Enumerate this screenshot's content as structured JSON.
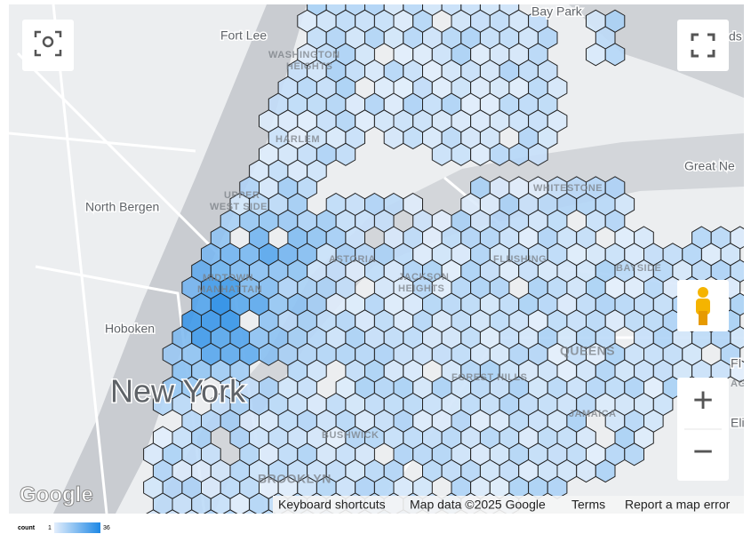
{
  "map": {
    "labels": [
      "Bay Park",
      "Fort Lee",
      "WASHINGTON",
      "HEIGHTS",
      "HARLEM",
      "UPPER",
      "WEST SIDE",
      "North Bergen",
      "Hoboken",
      "New York",
      "MIDTOWN",
      "MANHATTAN",
      "ASTORIA",
      "JACKSON",
      "HEIGHTS",
      "FLUSHING",
      "WHITESTONE",
      "BAYSIDE",
      "QUEENS",
      "FOREST HILLS",
      "JAMAICA",
      "BUSHWICK",
      "BROOKLYN",
      "Great Ne",
      "ds",
      "FI",
      "AG",
      "Eli"
    ],
    "attribution": {
      "logo": "Google",
      "shortcuts": "Keyboard shortcuts",
      "data": "Map data ©2025 Google",
      "terms": "Terms",
      "report": "Report a map error"
    },
    "zoom": {
      "in": "+",
      "out": "−"
    }
  },
  "legend": {
    "title": "count",
    "min": 1,
    "max": 36
  }
}
